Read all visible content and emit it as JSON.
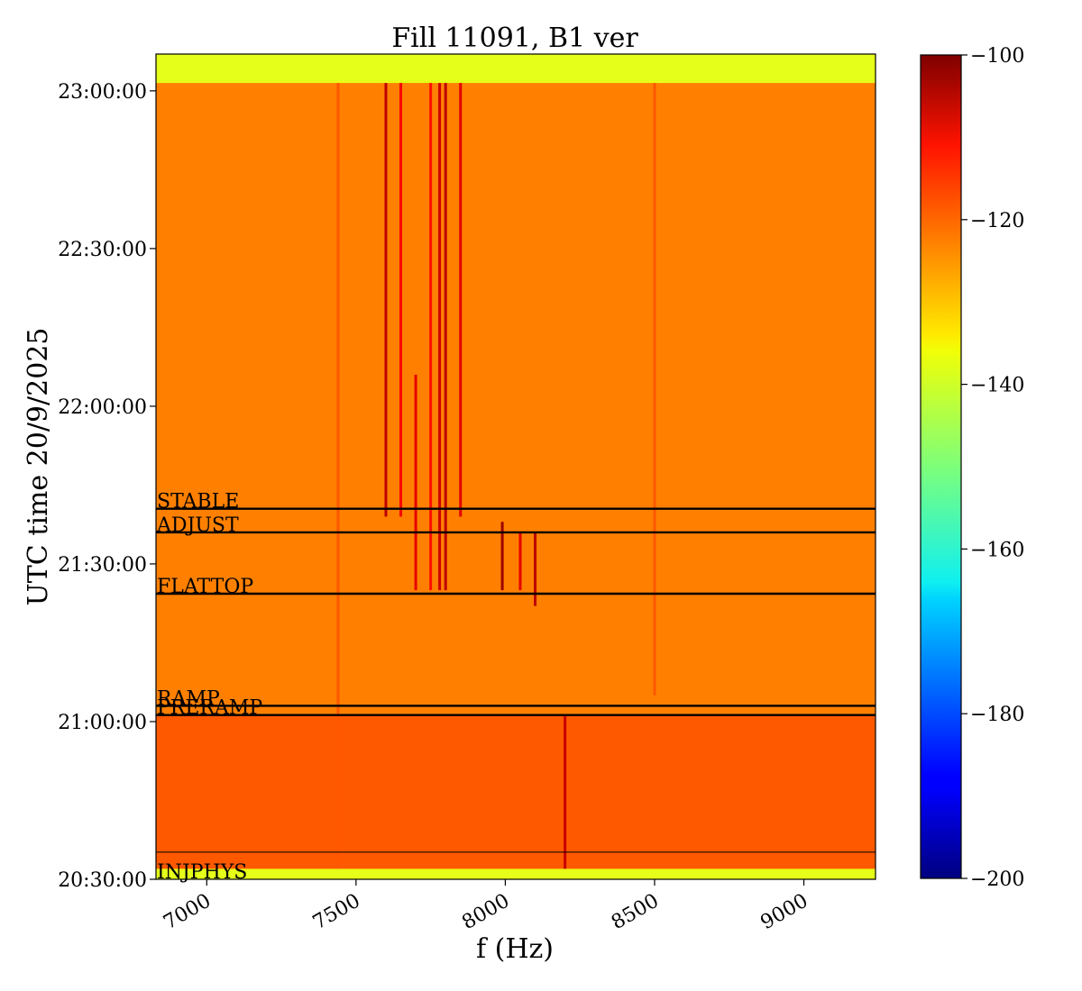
{
  "chart_data": {
    "type": "heatmap",
    "title": "Fill 11091, B1 ver",
    "xlabel": "f (Hz)",
    "ylabel": "UTC time 20/9/2025",
    "xlim": [
      6830,
      9240
    ],
    "ylim": [
      "20:30:00",
      "23:07:00"
    ],
    "x_ticks": [
      {
        "value": 7000,
        "label": "7000"
      },
      {
        "value": 7500,
        "label": "7500"
      },
      {
        "value": 8000,
        "label": "8000"
      },
      {
        "value": 8500,
        "label": "8500"
      },
      {
        "value": 9000,
        "label": "9000"
      }
    ],
    "y_ticks": [
      {
        "value": "20:30:00",
        "label": "20:30:00"
      },
      {
        "value": "21:00:00",
        "label": "21:00:00"
      },
      {
        "value": "21:30:00",
        "label": "21:30:00"
      },
      {
        "value": "22:00:00",
        "label": "22:00:00"
      },
      {
        "value": "22:30:00",
        "label": "22:30:00"
      },
      {
        "value": "23:00:00",
        "label": "23:00:00"
      }
    ],
    "colorbar": {
      "colormap": "jet",
      "range": [
        -200,
        -100
      ],
      "ticks": [
        {
          "value": -100,
          "label": "−100"
        },
        {
          "value": -120,
          "label": "−120"
        },
        {
          "value": -140,
          "label": "−140"
        },
        {
          "value": -160,
          "label": "−160"
        },
        {
          "value": -180,
          "label": "−180"
        },
        {
          "value": -200,
          "label": "−200"
        }
      ]
    },
    "background_level_db": -125,
    "no_data_level_db": -140,
    "data_time_range": [
      "20:32:00",
      "23:01:30"
    ],
    "beam_modes": [
      {
        "label": "INJPHYS",
        "time": "20:30:00",
        "line_time": "20:35:10",
        "thin": true
      },
      {
        "label": "PRERAMP",
        "time": "21:01:15"
      },
      {
        "label": "RAMP",
        "time": "21:03:00"
      },
      {
        "label": "FLATTOP",
        "time": "21:24:20"
      },
      {
        "label": "ADJUST",
        "time": "21:36:00"
      },
      {
        "label": "STABLE",
        "time": "21:40:30"
      }
    ],
    "lines": [
      {
        "f": 7440,
        "start": "20:32:00",
        "end": "23:01:30",
        "level": -121
      },
      {
        "f": 7600,
        "start": "21:39:00",
        "end": "23:01:30",
        "level": -106
      },
      {
        "f": 7650,
        "start": "21:39:00",
        "end": "23:01:30",
        "level": -112
      },
      {
        "f": 7700,
        "start": "21:25:00",
        "end": "22:06:00",
        "level": -110
      },
      {
        "f": 7750,
        "start": "21:25:00",
        "end": "23:01:30",
        "level": -114
      },
      {
        "f": 7780,
        "start": "21:25:00",
        "end": "23:01:30",
        "level": -108
      },
      {
        "f": 7800,
        "start": "21:25:00",
        "end": "23:01:30",
        "level": -106
      },
      {
        "f": 7850,
        "start": "21:39:00",
        "end": "23:01:30",
        "level": -110
      },
      {
        "f": 7990,
        "start": "21:25:00",
        "end": "21:38:00",
        "level": -103
      },
      {
        "f": 8050,
        "start": "21:25:00",
        "end": "21:36:00",
        "level": -110
      },
      {
        "f": 8100,
        "start": "21:22:00",
        "end": "21:36:00",
        "level": -106
      },
      {
        "f": 8200,
        "start": "20:32:00",
        "end": "21:01:00",
        "level": -107
      },
      {
        "f": 8500,
        "start": "21:05:00",
        "end": "23:01:30",
        "level": -121
      }
    ]
  }
}
